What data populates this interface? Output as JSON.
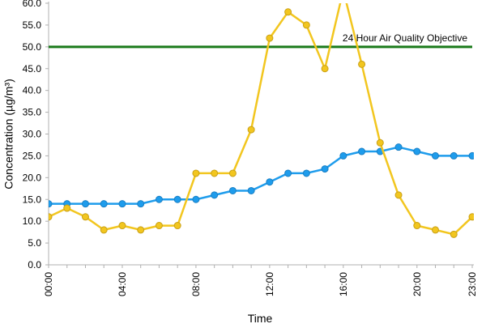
{
  "colors": {
    "series_blue": "#1e9cec",
    "series_yellow": "#f2c61f",
    "yellow_marker_stroke": "#c9a016",
    "blue_marker_stroke": "#1a7fc4",
    "objective_line": "#1a7a1a",
    "axis": "#b0b0b0"
  },
  "chart_data": {
    "type": "line",
    "xlabel": "Time",
    "ylabel": "Concentration (µg/m³)",
    "ylim": [
      0,
      60
    ],
    "yticks": [
      "0.0",
      "5.0",
      "10.0",
      "15.0",
      "20.0",
      "25.0",
      "30.0",
      "35.0",
      "40.0",
      "45.0",
      "50.0",
      "55.0",
      "60.0"
    ],
    "xticks": [
      "00:00",
      "04:00",
      "08:00",
      "12:00",
      "16:00",
      "20:00",
      "23:00"
    ],
    "x": [
      "00:00",
      "01:00",
      "02:00",
      "03:00",
      "04:00",
      "05:00",
      "06:00",
      "07:00",
      "08:00",
      "09:00",
      "10:00",
      "11:00",
      "12:00",
      "13:00",
      "14:00",
      "15:00",
      "16:00",
      "17:00",
      "18:00",
      "19:00",
      "20:00",
      "21:00",
      "22:00",
      "23:00"
    ],
    "series": [
      {
        "color": "#1e9cec",
        "values": [
          14,
          14,
          14,
          14,
          14,
          14,
          15,
          15,
          15,
          16,
          17,
          17,
          19,
          21,
          21,
          22,
          25,
          26,
          26,
          27,
          26,
          25,
          25,
          25
        ]
      },
      {
        "color": "#f2c61f",
        "values": [
          11,
          13,
          11,
          8,
          9,
          8,
          9,
          9,
          21,
          21,
          21,
          31,
          52,
          58,
          55,
          45,
          63,
          46,
          28,
          16,
          9,
          8,
          7,
          11
        ]
      }
    ],
    "objective": {
      "value": 50,
      "label": "24 Hour Air Quality Objective"
    },
    "grid": false
  }
}
